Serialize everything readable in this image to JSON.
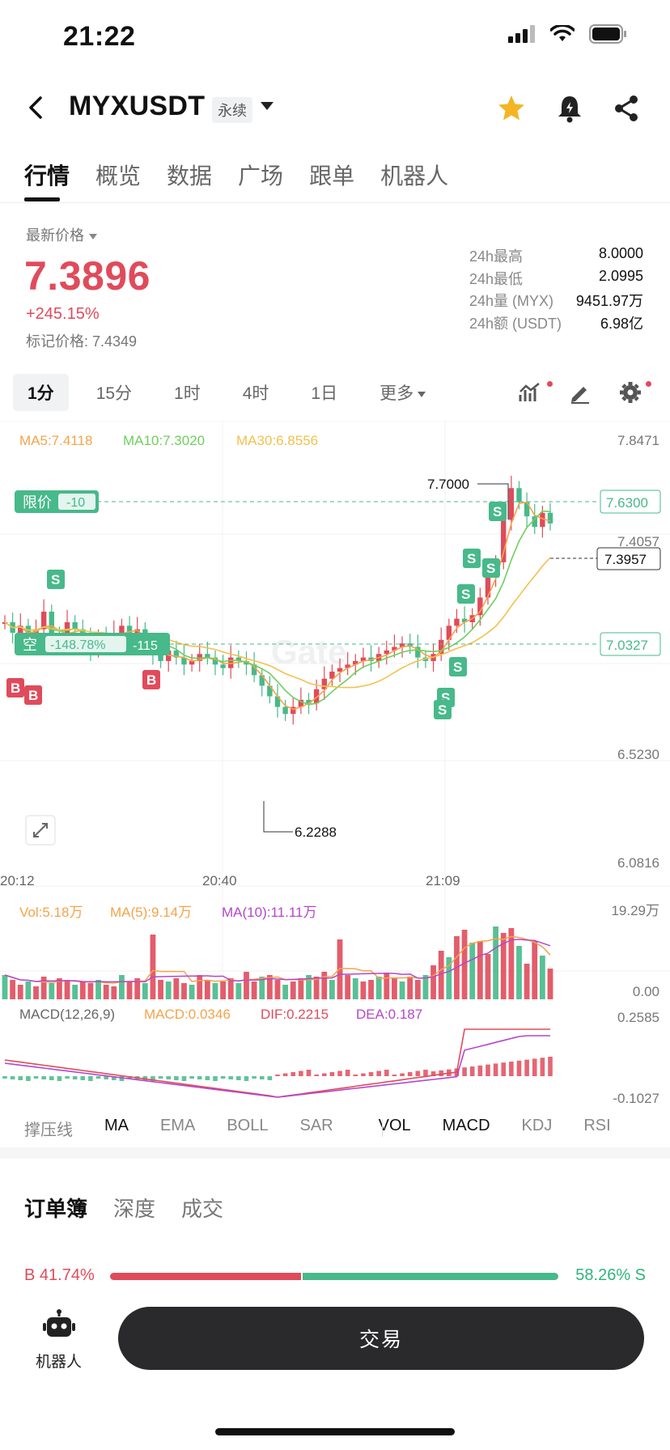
{
  "status_bar": {
    "time": "21:22"
  },
  "header": {
    "pair": "MYXUSDT",
    "type_tag": "永续"
  },
  "tabs": [
    "行情",
    "概览",
    "数据",
    "广场",
    "跟单",
    "机器人"
  ],
  "price": {
    "label": "最新价格",
    "last": "7.3896",
    "change": "+245.15%",
    "mark": "标记价格: 7.4349"
  },
  "stats": [
    {
      "k": "24h最高",
      "v": "8.0000"
    },
    {
      "k": "24h最低",
      "v": "2.0995"
    },
    {
      "k": "24h量 (MYX)",
      "v": "9451.97万"
    },
    {
      "k": "24h额 (USDT)",
      "v": "6.98亿"
    }
  ],
  "intervals": [
    "1分",
    "15分",
    "1时",
    "4时",
    "1日",
    "更多"
  ],
  "selected_interval": "1分",
  "chart": {
    "ma": {
      "ma5": "MA5:7.4118",
      "ma10": "MA10:7.3020",
      "ma30": "MA30:6.8556"
    },
    "y_labels": {
      "top": "7.8471",
      "l2": "7.4057",
      "l3": "6.5230",
      "bottom": "6.0816"
    },
    "x_labels": [
      "20:12",
      "20:40",
      "21:09"
    ],
    "high_marker": "7.7000",
    "low_marker": "6.2288",
    "limit_order": {
      "label": "限价",
      "qty": "-10",
      "price": "7.6300"
    },
    "position": {
      "label": "空",
      "pnl": "-148.78%",
      "qty": "-115",
      "price": "7.0327"
    },
    "current_price": "7.3957",
    "watermark": "Gate",
    "marker_b": "B",
    "marker_s": "S",
    "vol": {
      "vol": "Vol:5.18万",
      "ma5": "MA(5):9.14万",
      "ma10": "MA(10):11.11万",
      "max": "19.29万",
      "min": "0.00"
    },
    "macd": {
      "params": "MACD(12,26,9)",
      "macd": "MACD:0.0346",
      "dif": "DIF:0.2215",
      "dea": "DEA:0.187",
      "max": "0.2585",
      "min": "-0.1027"
    }
  },
  "chart_data": {
    "type": "candlestick",
    "x_time_labels": [
      "20:12",
      "20:40",
      "21:09"
    ],
    "ylim": [
      6.0816,
      7.8471
    ],
    "high": 7.7,
    "low": 6.2288,
    "close_last": 7.3957,
    "limit_price": 7.63,
    "position_price": 7.0327
  },
  "indicators": [
    "撑压线",
    "MA",
    "EMA",
    "BOLL",
    "SAR",
    "VOL",
    "MACD",
    "KDJ",
    "RSI"
  ],
  "orderbook": {
    "tabs": [
      "订单簿",
      "深度",
      "成交"
    ],
    "buy_ratio": "B 41.74%",
    "sell_ratio": "58.26% S"
  },
  "bottom": {
    "robot_label": "机器人",
    "trade_label": "交易"
  },
  "colors": {
    "up": "#e04b5b",
    "down": "#47b98a",
    "ma5": "#f5a34a",
    "ma10": "#6fcf5c",
    "ma30": "#f2c14e",
    "dea": "#b547c9"
  }
}
